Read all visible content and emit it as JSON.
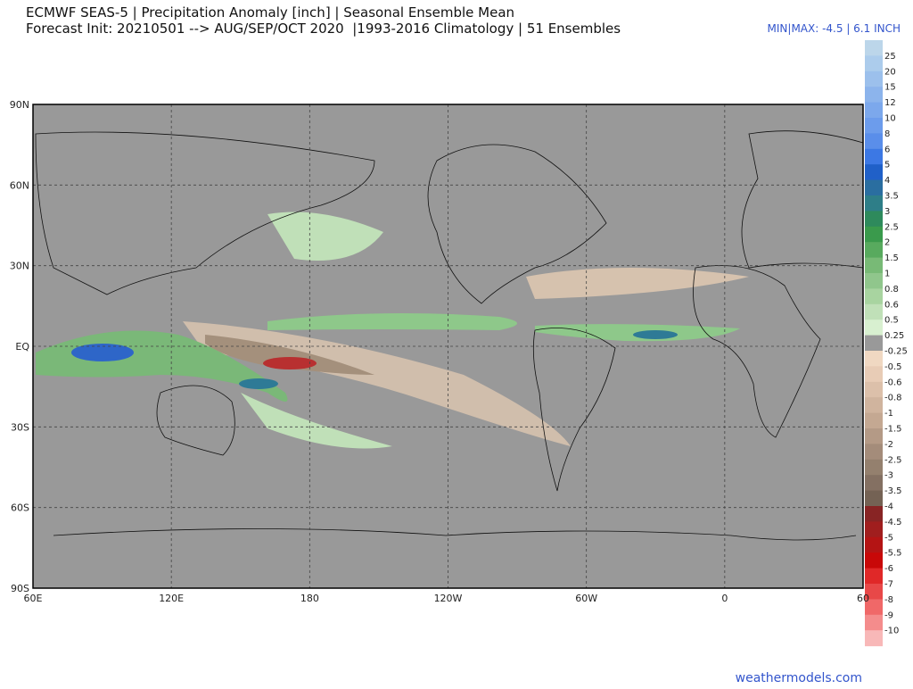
{
  "header": {
    "title": "ECMWF SEAS-5 | Precipitation Anomaly [inch] | Seasonal Ensemble Mean",
    "subtitle": "Forecast Init: 20210501 --> AUG/SEP/OCT 2020  |1993-2016 Climatology | 51 Ensembles",
    "minmax": "MIN|MAX: -4.5 | 6.1 INCH"
  },
  "map": {
    "lat_labels": [
      "90N",
      "60N",
      "30N",
      "EQ",
      "30S",
      "60S",
      "90S"
    ],
    "lon_labels": [
      "60E",
      "120E",
      "180",
      "120W",
      "60W",
      "0",
      "60"
    ]
  },
  "colorbar": {
    "labels": [
      "25",
      "20",
      "15",
      "12",
      "10",
      "8",
      "6",
      "5",
      "4",
      "3.5",
      "3",
      "2.5",
      "2",
      "1.5",
      "1",
      "0.8",
      "0.6",
      "0.5",
      "0.25",
      "-0.25",
      "-0.5",
      "-0.6",
      "-0.8",
      "-1",
      "-1.5",
      "-2",
      "-2.5",
      "-3",
      "-3.5",
      "-4",
      "-4.5",
      "-5",
      "-5.5",
      "-6",
      "-7",
      "-8",
      "-9",
      "-10"
    ],
    "colors": [
      "#bcd6ea",
      "#acccec",
      "#9cc0ec",
      "#8cb4ec",
      "#7ca8ec",
      "#6c9cec",
      "#5a8eea",
      "#3c78e4",
      "#2060c8",
      "#2a6ea0",
      "#2e7e88",
      "#2e8a5c",
      "#3a9a4c",
      "#58aa5e",
      "#78ba76",
      "#90c68c",
      "#a8d4a0",
      "#c0e0b8",
      "#d8f0d0",
      "#999999",
      "#f0d8c2",
      "#e8ccb6",
      "#dcc0aa",
      "#d0b49e",
      "#c4a892",
      "#b49a86",
      "#a48c7a",
      "#94806e",
      "#847062",
      "#746254",
      "#882424",
      "#a01e1e",
      "#b41414",
      "#c80808",
      "#e02828",
      "#e84848",
      "#f06868",
      "#f48c8c",
      "#f8b8b8"
    ]
  },
  "footer": {
    "credit": "weathermodels.com"
  }
}
